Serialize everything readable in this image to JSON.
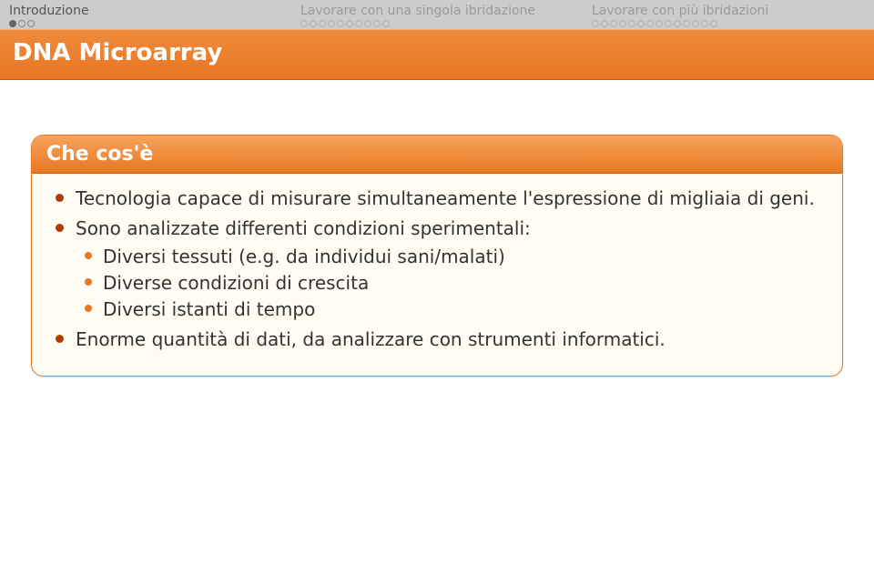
{
  "nav": {
    "sections": [
      {
        "label": "Introduzione",
        "active": true,
        "dots": [
          "filled",
          "open",
          "open"
        ]
      },
      {
        "label": "Lavorare con una singola ibridazione",
        "active": false,
        "dots": [
          "open",
          "open",
          "open",
          "open",
          "open",
          "open",
          "open",
          "open",
          "open",
          "open"
        ]
      },
      {
        "label": "Lavorare con più ibridazioni",
        "active": false,
        "dots": [
          "open",
          "open",
          "open",
          "open",
          "open",
          "open",
          "open",
          "open",
          "open",
          "open",
          "open",
          "open",
          "open",
          "open"
        ]
      }
    ]
  },
  "slide_title": "DNA Microarray",
  "block": {
    "header": "Che cos'è",
    "items": [
      {
        "text": "Tecnologia capace di misurare simultaneamente l'espressione di migliaia di geni.",
        "sub": []
      },
      {
        "text": "Sono analizzate differenti condizioni sperimentali:",
        "sub": [
          "Diversi tessuti (e.g. da individui sani/malati)",
          "Diverse condizioni di crescita",
          "Diversi istanti di tempo"
        ]
      },
      {
        "text": "Enorme quantità di dati, da analizzare con strumenti informatici.",
        "sub": []
      }
    ]
  },
  "colors": {
    "accent": "#e87722",
    "bullet_dark": "#b33a00",
    "nav_bg": "#cccccc",
    "block_bg": "#fffcf3"
  },
  "fonts": {
    "title_size_pt": 26,
    "header_size_pt": 22,
    "body_size_pt": 20,
    "nav_size_pt": 14
  }
}
